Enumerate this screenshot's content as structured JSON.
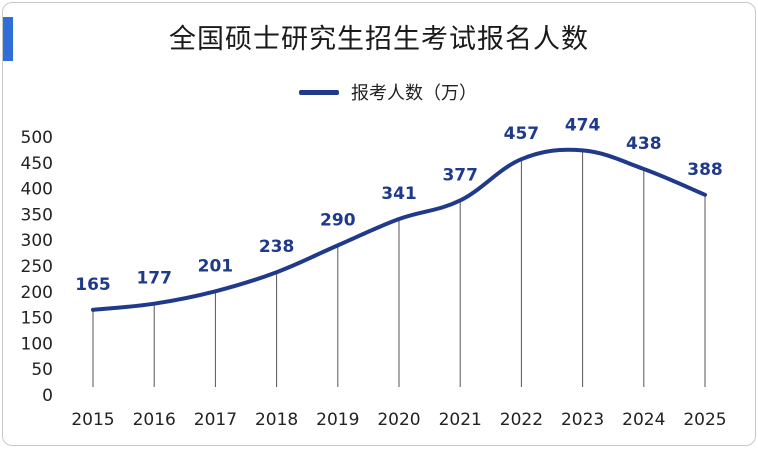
{
  "chart_data": {
    "type": "line",
    "title": "全国硕士研究生招生考试报名人数",
    "xlabel": "",
    "ylabel": "",
    "categories": [
      "2015",
      "2016",
      "2017",
      "2018",
      "2019",
      "2020",
      "2021",
      "2022",
      "2023",
      "2024",
      "2025"
    ],
    "series": [
      {
        "name": "报考人数（万）",
        "values": [
          165,
          177,
          201,
          238,
          290,
          341,
          377,
          457,
          474,
          438,
          388
        ],
        "color": "#1f3a8a"
      }
    ],
    "y_ticks": [
      "0",
      "50",
      "100",
      "150",
      "200",
      "250",
      "300",
      "350",
      "400",
      "450",
      "500"
    ],
    "ylim": [
      0,
      500
    ],
    "grid": false,
    "drop_lines": true,
    "legend": "top-center",
    "accent_color": "#2f6fd6"
  }
}
